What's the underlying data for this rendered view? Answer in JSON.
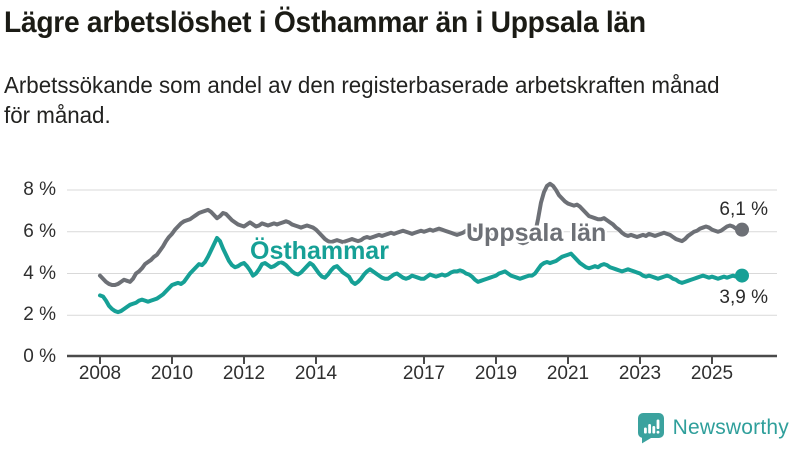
{
  "chart_data": {
    "type": "line",
    "title": "Lägre arbetslöshet i Östhammar än i Uppsala län",
    "subtitle": "Arbetssökande som andel av den registerbaserade arbetskraften månad\nför månad.",
    "unit": "%",
    "frequency": "monthly",
    "x_start_year": 2008,
    "x_start_month": 1,
    "ylim": [
      0,
      8
    ],
    "yticks": [
      0,
      2,
      4,
      6,
      8
    ],
    "ytick_labels": [
      "0 %",
      "2 %",
      "4 %",
      "6 %",
      "8 %"
    ],
    "xticks": [
      2008,
      2010,
      2012,
      2014,
      2017,
      2019,
      2021,
      2023,
      2025
    ],
    "xtick_labels": [
      "2008",
      "2010",
      "2012",
      "2014",
      "2017",
      "2019",
      "2021",
      "2023",
      "2025"
    ],
    "grid": "horizontal",
    "legend": "direct-labels-on-chart",
    "colors": {
      "grid": "#d9d9d9",
      "axis": "#4a4a4a",
      "tick_text": "#2f2f2f",
      "title_text": "#1b1b15"
    },
    "series": [
      {
        "name": "Uppsala län",
        "color": "#6d7076",
        "end_label": "6,1 %",
        "end_value": 6.1,
        "marker_end": true,
        "values": [
          3.9,
          3.75,
          3.6,
          3.5,
          3.45,
          3.45,
          3.5,
          3.6,
          3.7,
          3.65,
          3.6,
          3.75,
          4.0,
          4.1,
          4.25,
          4.45,
          4.55,
          4.65,
          4.8,
          4.9,
          5.1,
          5.3,
          5.55,
          5.75,
          5.9,
          6.1,
          6.25,
          6.4,
          6.5,
          6.55,
          6.6,
          6.7,
          6.8,
          6.9,
          6.95,
          7.0,
          7.05,
          6.95,
          6.8,
          6.65,
          6.75,
          6.9,
          6.85,
          6.7,
          6.55,
          6.45,
          6.35,
          6.3,
          6.25,
          6.35,
          6.45,
          6.35,
          6.25,
          6.3,
          6.4,
          6.35,
          6.3,
          6.35,
          6.4,
          6.35,
          6.4,
          6.45,
          6.5,
          6.45,
          6.35,
          6.3,
          6.25,
          6.2,
          6.25,
          6.3,
          6.25,
          6.2,
          6.1,
          5.95,
          5.8,
          5.65,
          5.55,
          5.5,
          5.55,
          5.6,
          5.55,
          5.5,
          5.55,
          5.6,
          5.65,
          5.6,
          5.55,
          5.6,
          5.7,
          5.75,
          5.7,
          5.75,
          5.8,
          5.85,
          5.8,
          5.85,
          5.9,
          5.95,
          5.9,
          5.95,
          6.0,
          6.05,
          6.0,
          5.95,
          5.9,
          5.95,
          6.0,
          6.05,
          6.0,
          6.05,
          6.1,
          6.05,
          6.1,
          6.15,
          6.1,
          6.05,
          6.0,
          5.95,
          5.9,
          5.85,
          5.9,
          5.95,
          6.05,
          6.1,
          6.15,
          6.1,
          6.05,
          6.0,
          5.95,
          5.9,
          5.85,
          5.9,
          5.9,
          5.85,
          5.75,
          5.65,
          5.6,
          5.65,
          5.7,
          5.6,
          5.5,
          5.45,
          5.5,
          5.6,
          5.7,
          5.9,
          6.6,
          7.4,
          7.9,
          8.2,
          8.3,
          8.2,
          8.0,
          7.75,
          7.6,
          7.45,
          7.35,
          7.3,
          7.25,
          7.3,
          7.2,
          7.05,
          6.9,
          6.75,
          6.7,
          6.65,
          6.6,
          6.6,
          6.65,
          6.55,
          6.45,
          6.35,
          6.2,
          6.1,
          5.95,
          5.85,
          5.8,
          5.85,
          5.8,
          5.75,
          5.8,
          5.85,
          5.8,
          5.9,
          5.85,
          5.8,
          5.85,
          5.9,
          5.95,
          5.9,
          5.85,
          5.75,
          5.65,
          5.6,
          5.55,
          5.65,
          5.8,
          5.9,
          6.0,
          6.05,
          6.15,
          6.2,
          6.25,
          6.2,
          6.1,
          6.05,
          6.0,
          6.05,
          6.15,
          6.25,
          6.3,
          6.25,
          6.15,
          6.15,
          6.1
        ]
      },
      {
        "name": "Östhammar",
        "color": "#16a096",
        "end_label": "3,9 %",
        "end_value": 3.9,
        "marker_end": true,
        "values": [
          2.95,
          2.9,
          2.7,
          2.45,
          2.3,
          2.2,
          2.15,
          2.2,
          2.3,
          2.4,
          2.5,
          2.55,
          2.6,
          2.7,
          2.75,
          2.7,
          2.65,
          2.7,
          2.75,
          2.8,
          2.9,
          3.0,
          3.15,
          3.3,
          3.45,
          3.5,
          3.55,
          3.5,
          3.6,
          3.8,
          4.0,
          4.15,
          4.3,
          4.45,
          4.4,
          4.55,
          4.8,
          5.1,
          5.4,
          5.7,
          5.55,
          5.2,
          4.9,
          4.6,
          4.4,
          4.3,
          4.35,
          4.45,
          4.5,
          4.35,
          4.15,
          3.9,
          4.0,
          4.2,
          4.45,
          4.5,
          4.4,
          4.3,
          4.35,
          4.45,
          4.55,
          4.5,
          4.4,
          4.25,
          4.1,
          4.0,
          3.95,
          4.05,
          4.2,
          4.35,
          4.5,
          4.4,
          4.2,
          4.0,
          3.85,
          3.8,
          3.95,
          4.15,
          4.3,
          4.35,
          4.2,
          4.05,
          3.95,
          3.85,
          3.6,
          3.5,
          3.6,
          3.75,
          3.95,
          4.1,
          4.2,
          4.1,
          4.0,
          3.9,
          3.8,
          3.75,
          3.75,
          3.85,
          3.95,
          4.0,
          3.9,
          3.8,
          3.75,
          3.8,
          3.9,
          3.85,
          3.8,
          3.75,
          3.75,
          3.85,
          3.95,
          3.9,
          3.85,
          3.9,
          3.95,
          3.9,
          3.95,
          4.05,
          4.1,
          4.1,
          4.15,
          4.1,
          4.0,
          3.95,
          3.85,
          3.7,
          3.6,
          3.65,
          3.7,
          3.75,
          3.8,
          3.85,
          3.9,
          4.0,
          4.05,
          4.1,
          4.0,
          3.9,
          3.85,
          3.8,
          3.75,
          3.8,
          3.85,
          3.9,
          3.9,
          4.0,
          4.2,
          4.4,
          4.5,
          4.55,
          4.5,
          4.55,
          4.6,
          4.7,
          4.8,
          4.85,
          4.9,
          4.95,
          4.8,
          4.65,
          4.5,
          4.4,
          4.3,
          4.25,
          4.3,
          4.35,
          4.3,
          4.4,
          4.45,
          4.4,
          4.3,
          4.25,
          4.2,
          4.15,
          4.1,
          4.15,
          4.2,
          4.15,
          4.1,
          4.05,
          4.0,
          3.9,
          3.85,
          3.9,
          3.85,
          3.8,
          3.75,
          3.8,
          3.85,
          3.9,
          3.85,
          3.75,
          3.7,
          3.6,
          3.55,
          3.6,
          3.65,
          3.7,
          3.75,
          3.8,
          3.85,
          3.9,
          3.85,
          3.8,
          3.85,
          3.8,
          3.75,
          3.8,
          3.85,
          3.8,
          3.85,
          3.9,
          3.85,
          3.9,
          3.9
        ]
      }
    ]
  },
  "footer": {
    "brand": "Newsworthy",
    "brand_color": "#2f9f9b"
  }
}
